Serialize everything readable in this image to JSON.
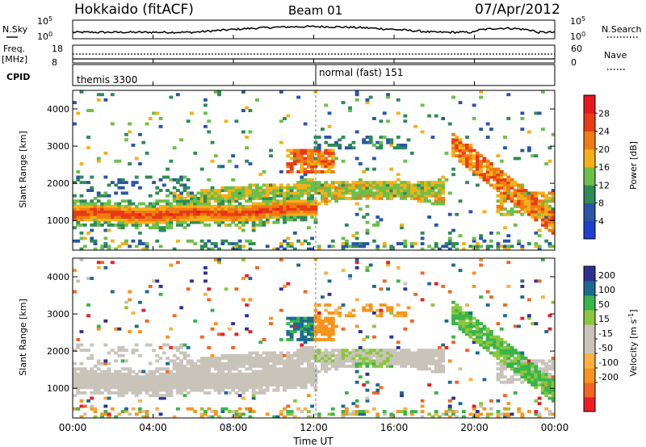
{
  "header": {
    "station": "Hokkaido (fitACF)",
    "beam": "Beam 01",
    "date": "07/Apr/2012"
  },
  "noise_panel": {
    "left_label": "N.Sky",
    "right_label": "N.Search",
    "ticks": [
      "10^5",
      "10^0"
    ]
  },
  "freq_panel": {
    "left_label_1": "Freq.",
    "left_label_2": "[MHz]",
    "left_ticks": [
      "18",
      "8"
    ],
    "right_label": "Nave",
    "right_ticks": [
      "60",
      "0"
    ]
  },
  "cpid_panel": {
    "label": "CPID",
    "modes": [
      "themis 3300",
      "normal (fast) 151"
    ]
  },
  "x_axis": {
    "label": "Time UT",
    "ticks": [
      "00:00",
      "04:00",
      "08:00",
      "12:00",
      "16:00",
      "20:00",
      "00:00"
    ]
  },
  "colors": {
    "power_scale": [
      "#1f3fd0",
      "#2a55a8",
      "#2e8b57",
      "#6cbf4a",
      "#f5b017",
      "#f07b12",
      "#e83a14",
      "#e6191e"
    ],
    "velocity_scale": [
      "#ed1c24",
      "#f26522",
      "#f7941d",
      "#fbb040",
      "#c8c4ba",
      "#c8c4ba",
      "#8cc63f",
      "#39b54a",
      "#1c6b8e",
      "#2e3192"
    ]
  },
  "chart_data": [
    {
      "type": "heatmap",
      "panel": "power",
      "xlabel": "Time UT",
      "ylabel": "Slant Range [km]",
      "xlim": [
        0,
        24
      ],
      "ylim": [
        200,
        4500
      ],
      "y_ticks": [
        "1000",
        "2000",
        "3000",
        "4000"
      ],
      "colorbar_label": "Power [dB]",
      "colorbar_ticks": [
        "28",
        "24",
        "20",
        "16",
        "12",
        "8",
        "4"
      ],
      "colorbar_range": [
        0,
        32
      ],
      "features": [
        {
          "name": "main echo band",
          "t_start": 0,
          "t_end": 12.2,
          "range_start": 1000,
          "range_end": 1400,
          "power": 26
        },
        {
          "name": "rising band",
          "t_start": 6,
          "t_end": 18.5,
          "range_start": 1400,
          "range_end": 2100,
          "power": 18
        },
        {
          "name": "upper patch",
          "t_start": 11,
          "t_end": 13,
          "range_start": 2400,
          "range_end": 2800,
          "power": 24
        },
        {
          "name": "descending arc",
          "t_start": 19,
          "t_end": 24,
          "range_start": 3000,
          "range_end": 1200,
          "power": 22
        }
      ]
    },
    {
      "type": "heatmap",
      "panel": "velocity",
      "xlabel": "Time UT",
      "ylabel": "Slant Range [km]",
      "xlim": [
        0,
        24
      ],
      "ylim": [
        200,
        4500
      ],
      "y_ticks": [
        "1000",
        "2000",
        "3000",
        "4000"
      ],
      "colorbar_label": "Velocity [m s^-1]",
      "colorbar_ticks": [
        "200",
        "100",
        "50",
        "15",
        "-15",
        "-50",
        "-100",
        "-200"
      ],
      "colorbar_range": [
        -250,
        250
      ]
    }
  ]
}
